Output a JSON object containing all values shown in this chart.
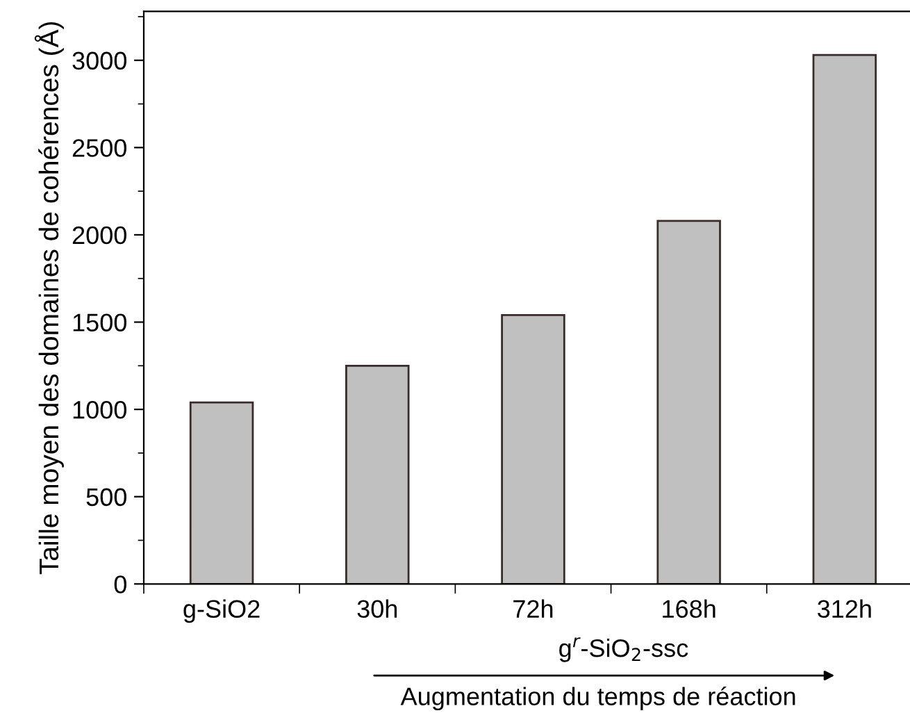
{
  "chart_data": {
    "type": "bar",
    "categories": [
      "g-SiO2",
      "30h",
      "72h",
      "168h",
      "312h"
    ],
    "values": [
      1040,
      1250,
      1540,
      2080,
      3030
    ],
    "color": "#c0c0c0",
    "ylabel": "Taille moyen des domaines de cohérences (Å)",
    "ylim": [
      0,
      3280
    ],
    "yticks": [
      0,
      500,
      1000,
      1500,
      2000,
      2500,
      3000
    ],
    "annotations": [
      "g$^{r}$-SiO$_{2}$-ssc",
      "Augmentation du temps de réaction"
    ],
    "grid": false,
    "legend": false
  }
}
